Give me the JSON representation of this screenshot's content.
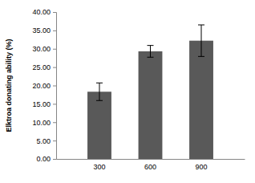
{
  "chart_data": {
    "type": "bar",
    "y_label": "Elktroa donating ability (%)",
    "categories": [
      "300",
      "600",
      "900"
    ],
    "values": [
      18.3,
      29.3,
      32.2
    ],
    "errors": [
      2.4,
      1.6,
      4.3
    ],
    "color": "#595959",
    "ylim": [
      0,
      40
    ],
    "yticks": [
      {
        "value": 0,
        "label": "0.00"
      },
      {
        "value": 5,
        "label": "5.00"
      },
      {
        "value": 10,
        "label": "10.00"
      },
      {
        "value": 15,
        "label": "15.00"
      },
      {
        "value": 20,
        "label": "20.00"
      },
      {
        "value": 25,
        "label": "25.00"
      },
      {
        "value": 30,
        "label": "30.00"
      },
      {
        "value": 35,
        "label": "35.00"
      },
      {
        "value": 40,
        "label": "40.00"
      }
    ],
    "grid": false
  }
}
